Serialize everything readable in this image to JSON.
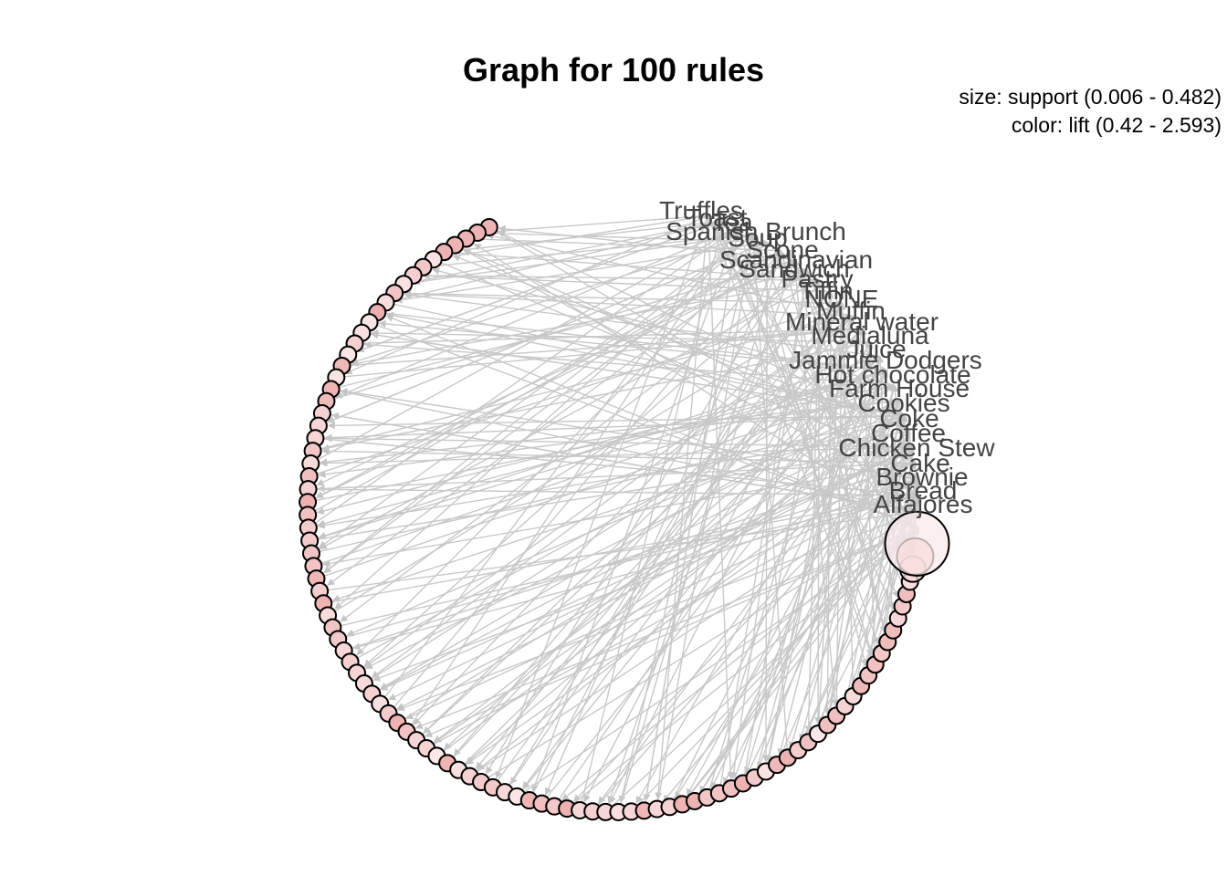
{
  "title": "Graph for 100 rules",
  "legend": {
    "size": "size: support (0.006 - 0.482)",
    "color": "color: lift (0.42 - 2.593)"
  },
  "rule_count": 100,
  "colors": {
    "rule_fill_low": "#fbeaea",
    "rule_fill_high": "#e07c7c",
    "rule_stroke": "#000000",
    "edge": "#c8c8c8",
    "label": "#444444"
  },
  "items": [
    "Truffles",
    "Toast",
    "Tea",
    "Spanish Brunch",
    "Soup",
    "Scone",
    "Scandinavian",
    "Sandwich",
    "Pastry",
    "Tiffin",
    "NONE",
    "Muffin",
    "Mineral water",
    "Medialuna",
    "Juice",
    "Jammie Dodgers",
    "Hot chocolate",
    "Farm House",
    "Cookies",
    "Coke",
    "Coffee",
    "Chicken Stew",
    "Cake",
    "Brownie",
    "Bread",
    "Alfajores"
  ]
}
